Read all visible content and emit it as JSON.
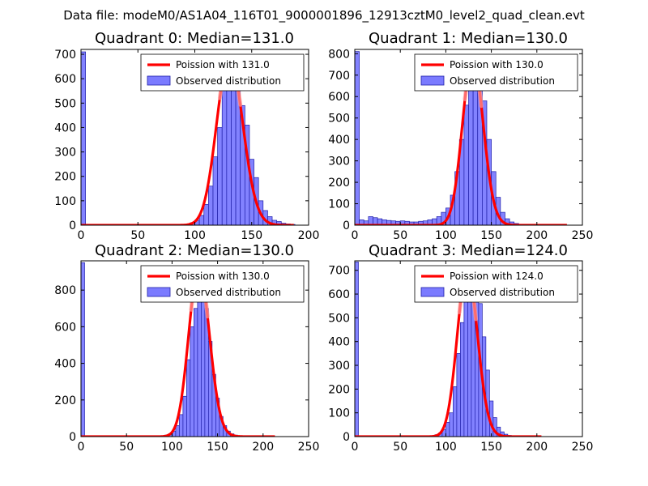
{
  "figure": {
    "suptitle": "Data file: modeM0/AS1A04_116T01_9000001896_12913cztM0_level2_quad_clean.evt",
    "background": "#ffffff"
  },
  "colors": {
    "hist_fill": "#7b7bff",
    "hist_edge": "#1f1fa8",
    "poisson_line": "#ff0000",
    "poisson_highlight": "#ff9a9a"
  },
  "chart_data": [
    {
      "type": "bar",
      "id": "q0",
      "title": "Quadrant 0: Median=131.0",
      "xlim": [
        0,
        200
      ],
      "ylim": [
        0,
        720
      ],
      "xticks": [
        0,
        50,
        100,
        150,
        200
      ],
      "yticks": [
        0,
        100,
        200,
        300,
        400,
        500,
        600,
        700
      ],
      "legend_loc": "upper right",
      "bin_width": 4,
      "bins": [
        {
          "x": 0,
          "y": 710
        },
        {
          "x": 88,
          "y": 2
        },
        {
          "x": 92,
          "y": 4
        },
        {
          "x": 96,
          "y": 10
        },
        {
          "x": 100,
          "y": 20
        },
        {
          "x": 104,
          "y": 40
        },
        {
          "x": 108,
          "y": 85
        },
        {
          "x": 112,
          "y": 160
        },
        {
          "x": 116,
          "y": 280
        },
        {
          "x": 120,
          "y": 400
        },
        {
          "x": 124,
          "y": 595
        },
        {
          "x": 128,
          "y": 600
        },
        {
          "x": 132,
          "y": 590
        },
        {
          "x": 136,
          "y": 565
        },
        {
          "x": 140,
          "y": 490
        },
        {
          "x": 144,
          "y": 410
        },
        {
          "x": 148,
          "y": 270
        },
        {
          "x": 152,
          "y": 195
        },
        {
          "x": 156,
          "y": 100
        },
        {
          "x": 160,
          "y": 60
        },
        {
          "x": 164,
          "y": 35
        },
        {
          "x": 168,
          "y": 20
        },
        {
          "x": 172,
          "y": 15
        },
        {
          "x": 176,
          "y": 8
        },
        {
          "x": 180,
          "y": 5
        },
        {
          "x": 184,
          "y": 3
        }
      ],
      "poisson": {
        "label": "Poission with 131.0",
        "mean": 131.0,
        "peak": 690,
        "x_range": [
          0,
          187
        ]
      },
      "hist_label": "Observed distribution"
    },
    {
      "type": "bar",
      "id": "q1",
      "title": "Quadrant 1: Median=130.0",
      "xlim": [
        0,
        250
      ],
      "ylim": [
        0,
        820
      ],
      "xticks": [
        0,
        50,
        100,
        150,
        200,
        250
      ],
      "yticks": [
        0,
        100,
        200,
        300,
        400,
        500,
        600,
        700,
        800
      ],
      "legend_loc": "upper right",
      "bin_width": 5,
      "bins": [
        {
          "x": 0,
          "y": 810
        },
        {
          "x": 5,
          "y": 25
        },
        {
          "x": 10,
          "y": 20
        },
        {
          "x": 15,
          "y": 40
        },
        {
          "x": 20,
          "y": 35
        },
        {
          "x": 25,
          "y": 30
        },
        {
          "x": 30,
          "y": 25
        },
        {
          "x": 35,
          "y": 22
        },
        {
          "x": 40,
          "y": 20
        },
        {
          "x": 45,
          "y": 18
        },
        {
          "x": 50,
          "y": 20
        },
        {
          "x": 55,
          "y": 18
        },
        {
          "x": 60,
          "y": 15
        },
        {
          "x": 65,
          "y": 15
        },
        {
          "x": 70,
          "y": 18
        },
        {
          "x": 75,
          "y": 20
        },
        {
          "x": 80,
          "y": 25
        },
        {
          "x": 85,
          "y": 30
        },
        {
          "x": 90,
          "y": 40
        },
        {
          "x": 95,
          "y": 60
        },
        {
          "x": 100,
          "y": 80
        },
        {
          "x": 105,
          "y": 140
        },
        {
          "x": 110,
          "y": 250
        },
        {
          "x": 115,
          "y": 400
        },
        {
          "x": 120,
          "y": 560
        },
        {
          "x": 125,
          "y": 680
        },
        {
          "x": 130,
          "y": 720
        },
        {
          "x": 135,
          "y": 690
        },
        {
          "x": 140,
          "y": 580
        },
        {
          "x": 145,
          "y": 400
        },
        {
          "x": 150,
          "y": 250
        },
        {
          "x": 155,
          "y": 130
        },
        {
          "x": 160,
          "y": 60
        },
        {
          "x": 165,
          "y": 30
        },
        {
          "x": 170,
          "y": 15
        },
        {
          "x": 175,
          "y": 8
        },
        {
          "x": 180,
          "y": 4
        }
      ],
      "poisson": {
        "label": "Poission with 130.0",
        "mean": 130.0,
        "peak": 780,
        "x_range": [
          0,
          233
        ]
      },
      "hist_label": "Observed distribution"
    },
    {
      "type": "bar",
      "id": "q2",
      "title": "Quadrant 2: Median=130.0",
      "xlim": [
        0,
        250
      ],
      "ylim": [
        0,
        960
      ],
      "xticks": [
        0,
        50,
        100,
        150,
        200,
        250
      ],
      "yticks": [
        0,
        200,
        400,
        600,
        800
      ],
      "legend_loc": "upper right",
      "bin_width": 4,
      "bins": [
        {
          "x": 0,
          "y": 950
        },
        {
          "x": 84,
          "y": 2
        },
        {
          "x": 88,
          "y": 3
        },
        {
          "x": 92,
          "y": 8
        },
        {
          "x": 96,
          "y": 15
        },
        {
          "x": 100,
          "y": 30
        },
        {
          "x": 104,
          "y": 60
        },
        {
          "x": 108,
          "y": 120
        },
        {
          "x": 112,
          "y": 220
        },
        {
          "x": 116,
          "y": 420
        },
        {
          "x": 120,
          "y": 600
        },
        {
          "x": 124,
          "y": 700
        },
        {
          "x": 128,
          "y": 780
        },
        {
          "x": 132,
          "y": 810
        },
        {
          "x": 136,
          "y": 700
        },
        {
          "x": 140,
          "y": 520
        },
        {
          "x": 144,
          "y": 340
        },
        {
          "x": 148,
          "y": 210
        },
        {
          "x": 152,
          "y": 110
        },
        {
          "x": 156,
          "y": 60
        },
        {
          "x": 160,
          "y": 30
        },
        {
          "x": 164,
          "y": 15
        },
        {
          "x": 168,
          "y": 8
        },
        {
          "x": 172,
          "y": 4
        },
        {
          "x": 176,
          "y": 2
        }
      ],
      "poisson": {
        "label": "Poission with 130.0",
        "mean": 130.0,
        "peak": 920,
        "x_range": [
          0,
          213
        ]
      },
      "hist_label": "Observed distribution"
    },
    {
      "type": "bar",
      "id": "q3",
      "title": "Quadrant 3: Median=124.0",
      "xlim": [
        0,
        250
      ],
      "ylim": [
        0,
        740
      ],
      "xticks": [
        0,
        50,
        100,
        150,
        200,
        250
      ],
      "yticks": [
        0,
        100,
        200,
        300,
        400,
        500,
        600,
        700
      ],
      "legend_loc": "upper right",
      "bin_width": 4,
      "bins": [
        {
          "x": 0,
          "y": 735
        },
        {
          "x": 84,
          "y": 3
        },
        {
          "x": 88,
          "y": 8
        },
        {
          "x": 92,
          "y": 15
        },
        {
          "x": 96,
          "y": 30
        },
        {
          "x": 100,
          "y": 60
        },
        {
          "x": 104,
          "y": 100
        },
        {
          "x": 108,
          "y": 210
        },
        {
          "x": 112,
          "y": 350
        },
        {
          "x": 116,
          "y": 480
        },
        {
          "x": 120,
          "y": 600
        },
        {
          "x": 124,
          "y": 660
        },
        {
          "x": 128,
          "y": 690
        },
        {
          "x": 132,
          "y": 650
        },
        {
          "x": 136,
          "y": 560
        },
        {
          "x": 140,
          "y": 420
        },
        {
          "x": 144,
          "y": 280
        },
        {
          "x": 148,
          "y": 150
        },
        {
          "x": 152,
          "y": 80
        },
        {
          "x": 156,
          "y": 40
        },
        {
          "x": 160,
          "y": 20
        },
        {
          "x": 164,
          "y": 10
        },
        {
          "x": 168,
          "y": 5
        },
        {
          "x": 172,
          "y": 3
        }
      ],
      "poisson": {
        "label": "Poission with 124.0",
        "mean": 124.0,
        "peak": 705,
        "x_range": [
          0,
          205
        ]
      },
      "hist_label": "Observed distribution"
    }
  ]
}
